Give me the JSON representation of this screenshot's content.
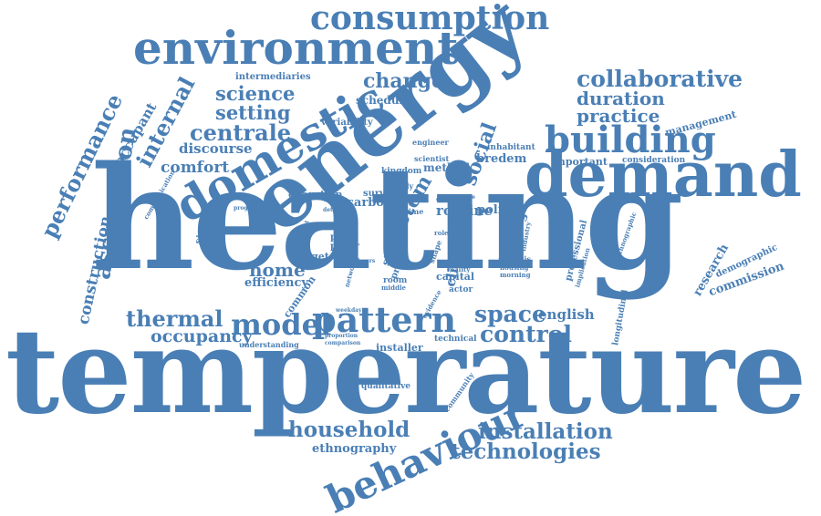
{
  "accent_color": "#4a7fb5",
  "words": [
    {
      "text": "temperature"
    },
    {
      "text": "heating"
    },
    {
      "text": "energy"
    },
    {
      "text": "demand"
    },
    {
      "text": "environment"
    },
    {
      "text": "domestic"
    },
    {
      "text": "consumption"
    },
    {
      "text": "building"
    },
    {
      "text": "pattern"
    },
    {
      "text": "behaviour"
    },
    {
      "text": "model"
    },
    {
      "text": "thermal"
    },
    {
      "text": "household"
    },
    {
      "text": "technologies"
    },
    {
      "text": "installation"
    },
    {
      "text": "control"
    },
    {
      "text": "space"
    },
    {
      "text": "collaborative"
    },
    {
      "text": "duration"
    },
    {
      "text": "practice"
    },
    {
      "text": "change"
    },
    {
      "text": "science"
    },
    {
      "text": "setting"
    },
    {
      "text": "centrale"
    },
    {
      "text": "internal"
    },
    {
      "text": "performance"
    },
    {
      "text": "assumption"
    },
    {
      "text": "construction"
    },
    {
      "text": "occupant"
    },
    {
      "text": "comfort"
    },
    {
      "text": "discourse"
    },
    {
      "text": "occupancy"
    },
    {
      "text": "home"
    },
    {
      "text": "efficiency"
    },
    {
      "text": "social"
    },
    {
      "text": "system"
    },
    {
      "text": "routine"
    },
    {
      "text": "policy"
    },
    {
      "text": "climate"
    },
    {
      "text": "english"
    },
    {
      "text": "ethnography"
    },
    {
      "text": "commission"
    },
    {
      "text": "research"
    },
    {
      "text": "demographic"
    },
    {
      "text": "management"
    },
    {
      "text": "consideration"
    },
    {
      "text": "important"
    },
    {
      "text": "inhabitant"
    },
    {
      "text": "bredem"
    },
    {
      "text": "method"
    },
    {
      "text": "kingdom"
    },
    {
      "text": "carbon"
    },
    {
      "text": "survey"
    },
    {
      "text": "operation"
    },
    {
      "text": "schedule"
    },
    {
      "text": "intermediaries"
    },
    {
      "text": "variability"
    },
    {
      "text": "engineer"
    },
    {
      "text": "scientist"
    },
    {
      "text": "significant"
    },
    {
      "text": "communication"
    },
    {
      "text": "target"
    },
    {
      "text": "common"
    },
    {
      "text": "paper"
    },
    {
      "text": "panel"
    },
    {
      "text": "stock"
    },
    {
      "text": "profile"
    },
    {
      "text": "dwelling"
    },
    {
      "text": "capital"
    },
    {
      "text": "professional"
    },
    {
      "text": "implication"
    },
    {
      "text": "longitudinal"
    },
    {
      "text": "ethnographic"
    },
    {
      "text": "qualitative"
    },
    {
      "text": "community"
    },
    {
      "text": "installer"
    },
    {
      "text": "technical"
    },
    {
      "text": "understanding"
    },
    {
      "text": "actor"
    },
    {
      "text": "room"
    },
    {
      "text": "middle"
    },
    {
      "text": "reality"
    },
    {
      "text": "analysis"
    },
    {
      "text": "housing"
    },
    {
      "text": "morning"
    },
    {
      "text": "data"
    },
    {
      "text": "living"
    },
    {
      "text": "shape"
    },
    {
      "text": "network"
    },
    {
      "text": "standard"
    },
    {
      "text": "programme"
    },
    {
      "text": "proportion"
    },
    {
      "text": "comparison"
    },
    {
      "text": "weekday"
    },
    {
      "text": "time"
    },
    {
      "text": "supply"
    },
    {
      "text": "reduce"
    },
    {
      "text": "weekend"
    },
    {
      "text": "evidence"
    },
    {
      "text": "role"
    },
    {
      "text": "industry"
    },
    {
      "text": "detailed"
    },
    {
      "text": "hours"
    }
  ]
}
